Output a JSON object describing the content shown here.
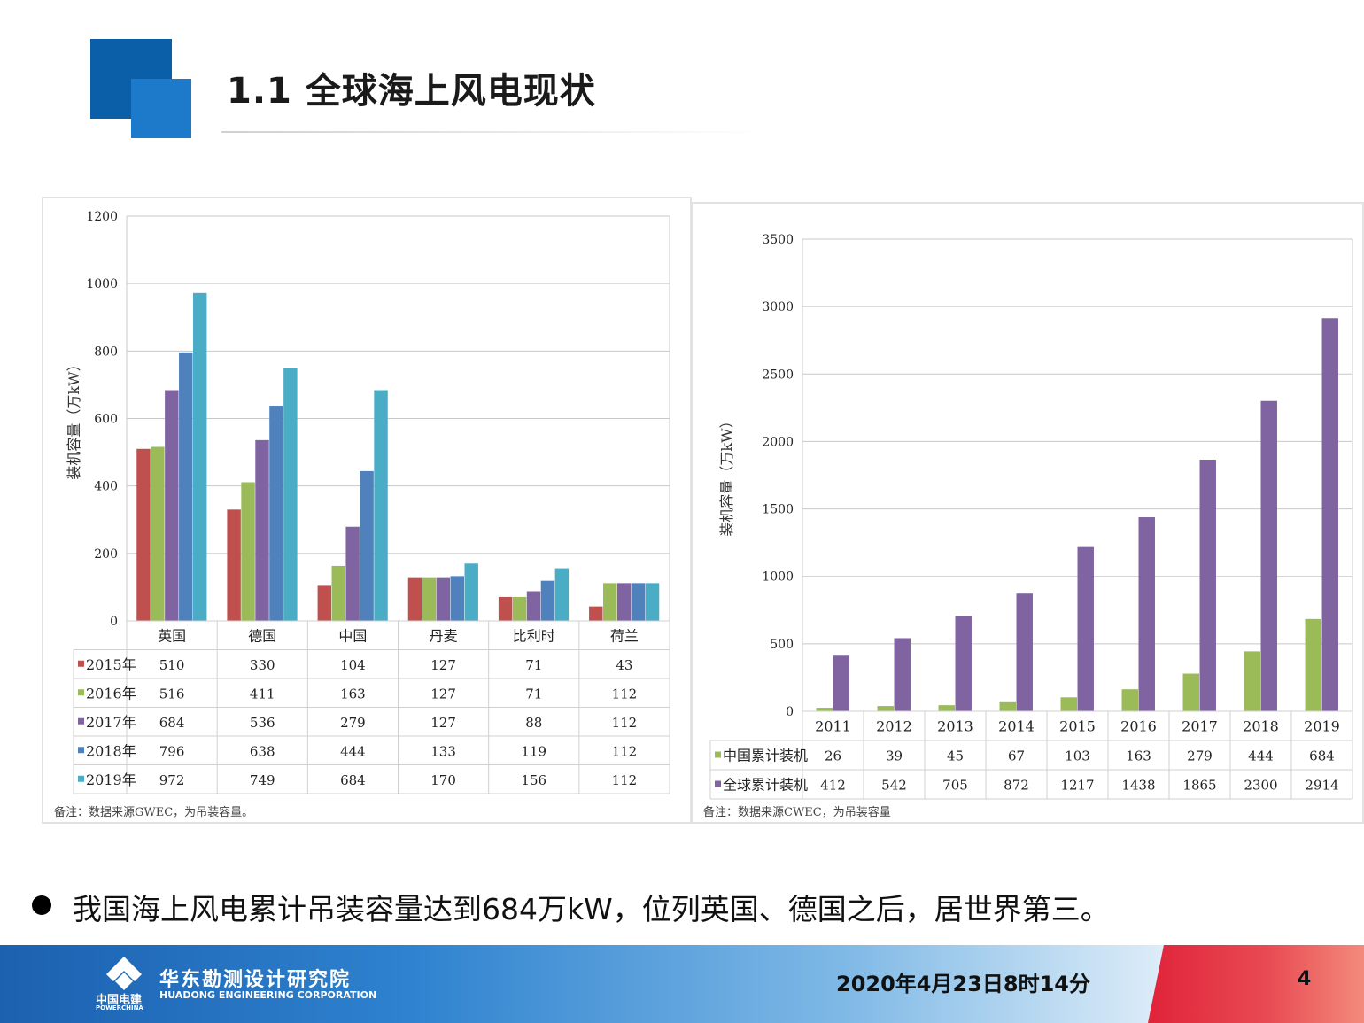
{
  "slide": {
    "title": "1.1  全球海上风电现状",
    "bullet": "我国海上风电累计吊装容量达到684万kW，位列英国、德国之后，居世界第三。",
    "footer": {
      "logo_cn": "中国电建",
      "logo_en": "POWERCHINA",
      "org_cn": "华东勘测设计研究院",
      "org_en": "HUADONG ENGINEERING CORPORATION",
      "datetime": "2020年4月23日8时14分",
      "page": "4"
    }
  },
  "chart_data": [
    {
      "type": "bar",
      "ylabel": "装机容量（万kW）",
      "ylim": [
        0,
        1200
      ],
      "yticks": [
        0,
        200,
        400,
        600,
        800,
        1000,
        1200
      ],
      "grid": true,
      "categories": [
        "英国",
        "德国",
        "中国",
        "丹麦",
        "比利时",
        "荷兰"
      ],
      "series": [
        {
          "name": "2015年",
          "color": "#c0504d",
          "values": [
            510,
            330,
            104,
            127,
            71,
            43
          ]
        },
        {
          "name": "2016年",
          "color": "#9bbb59",
          "values": [
            516,
            411,
            163,
            127,
            71,
            112
          ]
        },
        {
          "name": "2017年",
          "color": "#8064a2",
          "values": [
            684,
            536,
            279,
            127,
            88,
            112
          ]
        },
        {
          "name": "2018年",
          "color": "#4f81bd",
          "values": [
            796,
            638,
            444,
            133,
            119,
            112
          ]
        },
        {
          "name": "2019年",
          "color": "#4bacc6",
          "values": [
            972,
            749,
            684,
            170,
            156,
            112
          ]
        }
      ],
      "legend": "data-table",
      "note": "备注：数据来源GWEC，为吊装容量。"
    },
    {
      "type": "bar",
      "ylabel": "装机容量（万kW）",
      "ylim": [
        0,
        3500
      ],
      "yticks": [
        0,
        500,
        1000,
        1500,
        2000,
        2500,
        3000,
        3500
      ],
      "grid": true,
      "categories": [
        "2011",
        "2012",
        "2013",
        "2014",
        "2015",
        "2016",
        "2017",
        "2018",
        "2019"
      ],
      "series": [
        {
          "name": "中国累计装机",
          "color": "#9bbb59",
          "values": [
            26,
            39,
            45,
            67,
            103,
            163,
            279,
            444,
            684
          ]
        },
        {
          "name": "全球累计装机",
          "color": "#8064a2",
          "values": [
            412,
            542,
            705,
            872,
            1217,
            1438,
            1865,
            2300,
            2914
          ]
        }
      ],
      "legend": "data-table",
      "note": "备注：数据来源CWEC，为吊装容量"
    }
  ]
}
